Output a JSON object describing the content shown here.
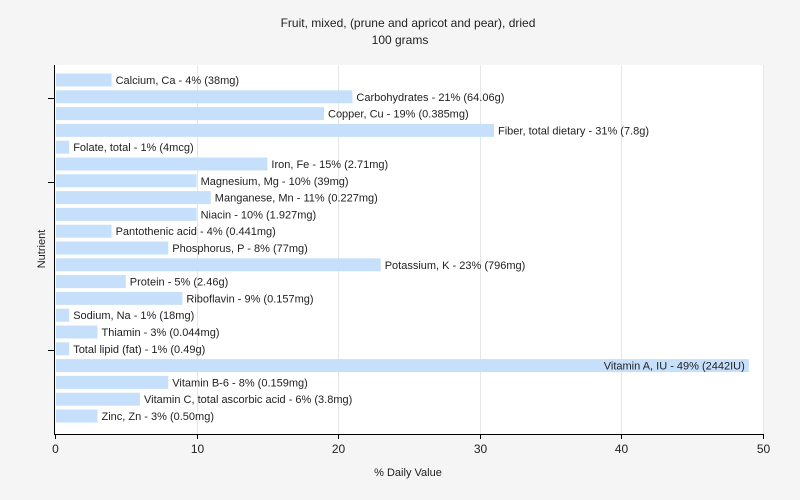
{
  "chart_data": {
    "type": "bar",
    "orientation": "horizontal",
    "title": "Fruit, mixed, (prune and apricot and pear), dried",
    "subtitle": "100 grams",
    "xlabel": "% Daily Value",
    "ylabel": "Nutrient",
    "xlim": [
      0,
      50
    ],
    "xticks": [
      0,
      10,
      20,
      30,
      40,
      50
    ],
    "grid": true,
    "bar_color": "#c6e0fc",
    "categories": [
      "Calcium, Ca",
      "Carbohydrates",
      "Copper, Cu",
      "Fiber, total dietary",
      "Folate, total",
      "Iron, Fe",
      "Magnesium, Mg",
      "Manganese, Mn",
      "Niacin",
      "Pantothenic acid",
      "Phosphorus, P",
      "Potassium, K",
      "Protein",
      "Riboflavin",
      "Sodium, Na",
      "Thiamin",
      "Total lipid (fat)",
      "Vitamin A, IU",
      "Vitamin B-6",
      "Vitamin C, total ascorbic acid",
      "Zinc, Zn"
    ],
    "values": [
      4,
      21,
      19,
      31,
      1,
      15,
      10,
      11,
      10,
      4,
      8,
      23,
      5,
      9,
      1,
      3,
      1,
      49,
      8,
      6,
      3
    ],
    "labels": [
      "Calcium, Ca - 4% (38mg)",
      "Carbohydrates - 21% (64.06g)",
      "Copper, Cu - 19% (0.385mg)",
      "Fiber, total dietary - 31% (7.8g)",
      "Folate, total - 1% (4mcg)",
      "Iron, Fe - 15% (2.71mg)",
      "Magnesium, Mg - 10% (39mg)",
      "Manganese, Mn - 11% (0.227mg)",
      "Niacin - 10% (1.927mg)",
      "Pantothenic acid - 4% (0.441mg)",
      "Phosphorus, P - 8% (77mg)",
      "Potassium, K - 23% (796mg)",
      "Protein - 5% (2.46g)",
      "Riboflavin - 9% (0.157mg)",
      "Sodium, Na - 1% (18mg)",
      "Thiamin - 3% (0.044mg)",
      "Total lipid (fat) - 1% (0.49g)",
      "Vitamin A, IU - 49% (2442IU)",
      "Vitamin B-6 - 8% (0.159mg)",
      "Vitamin C, total ascorbic acid - 6% (3.8mg)",
      "Zinc, Zn - 3% (0.50mg)"
    ]
  }
}
